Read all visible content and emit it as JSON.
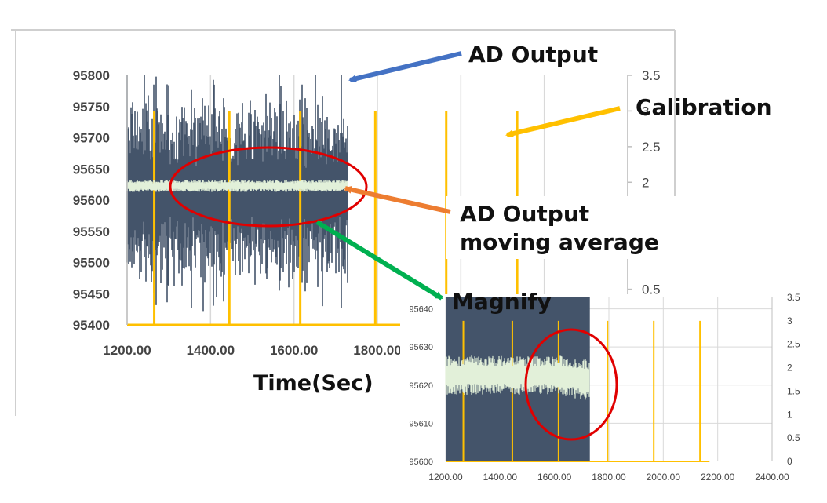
{
  "chart_data": [
    {
      "id": "main",
      "type": "line",
      "x_ticks": [
        "1200.00",
        "1400.00",
        "1600.00",
        "1800.00"
      ],
      "y_ticks": [
        "95800",
        "95750",
        "95700",
        "95650",
        "95600",
        "95550",
        "95500",
        "95450",
        "95400"
      ],
      "y2_ticks": [
        "3.5",
        "3",
        "2.5",
        "2",
        "0.5"
      ],
      "xlabel": "Time(Sec)",
      "xlim": [
        1200,
        2400
      ],
      "ylim": [
        95400,
        95800
      ],
      "y2lim": [
        0,
        3.5
      ],
      "series": [
        {
          "name": "AD Output",
          "role": "raw",
          "x_start": 1200,
          "x_end": 1730,
          "center": 95610,
          "amplitude_max": 200,
          "color": "#44546a"
        },
        {
          "name": "AD Output moving average",
          "role": "avg",
          "x_start": 1200,
          "x_end": 1730,
          "center": 95622,
          "color": "#e2f0d9"
        },
        {
          "name": "Calibration",
          "role": "calibration",
          "axis": "secondary",
          "x": [
            1265,
            1445,
            1615,
            1795,
            1965,
            2135
          ],
          "values": [
            3,
            3,
            3,
            3,
            3,
            3
          ],
          "color": "#ffc000"
        }
      ]
    },
    {
      "id": "magnify",
      "type": "line",
      "x_ticks": [
        "1200.00",
        "1400.00",
        "1600.00",
        "1800.00",
        "2000.00",
        "2200.00",
        "2400.00"
      ],
      "y_ticks": [
        "95640",
        "95630",
        "95620",
        "95610",
        "95600"
      ],
      "y2_ticks": [
        "3.5",
        "3",
        "2.5",
        "2",
        "1.5",
        "1",
        "0.5",
        "0"
      ],
      "xlim": [
        1200,
        2400
      ],
      "ylim": [
        95600,
        95643
      ],
      "y2lim": [
        0,
        3.5
      ],
      "series": [
        {
          "name": "AD Output",
          "role": "raw",
          "x_start": 1200,
          "x_end": 1730,
          "color": "#44546a"
        },
        {
          "name": "AD Output moving average",
          "role": "avg",
          "x_start": 1200,
          "x_end": 1730,
          "center": 95622,
          "color": "#e2f0d9"
        },
        {
          "name": "Calibration",
          "role": "calibration",
          "axis": "secondary",
          "x": [
            1265,
            1445,
            1615,
            1795,
            1965,
            2135
          ],
          "values": [
            3,
            3,
            3,
            3,
            3,
            3
          ],
          "color": "#ffc000"
        }
      ]
    }
  ],
  "annotations": {
    "ad_output": "AD Output",
    "calibration": "Calibration",
    "moving_average_line1": "AD Output",
    "moving_average_line2": "moving average",
    "magnify": "Magnify"
  },
  "colors": {
    "arrow_ad_output": "#4472c4",
    "arrow_calibration": "#ffc000",
    "arrow_moving_average": "#ed7d31",
    "arrow_magnify": "#00b050",
    "highlight_ellipse": "#e00000"
  }
}
